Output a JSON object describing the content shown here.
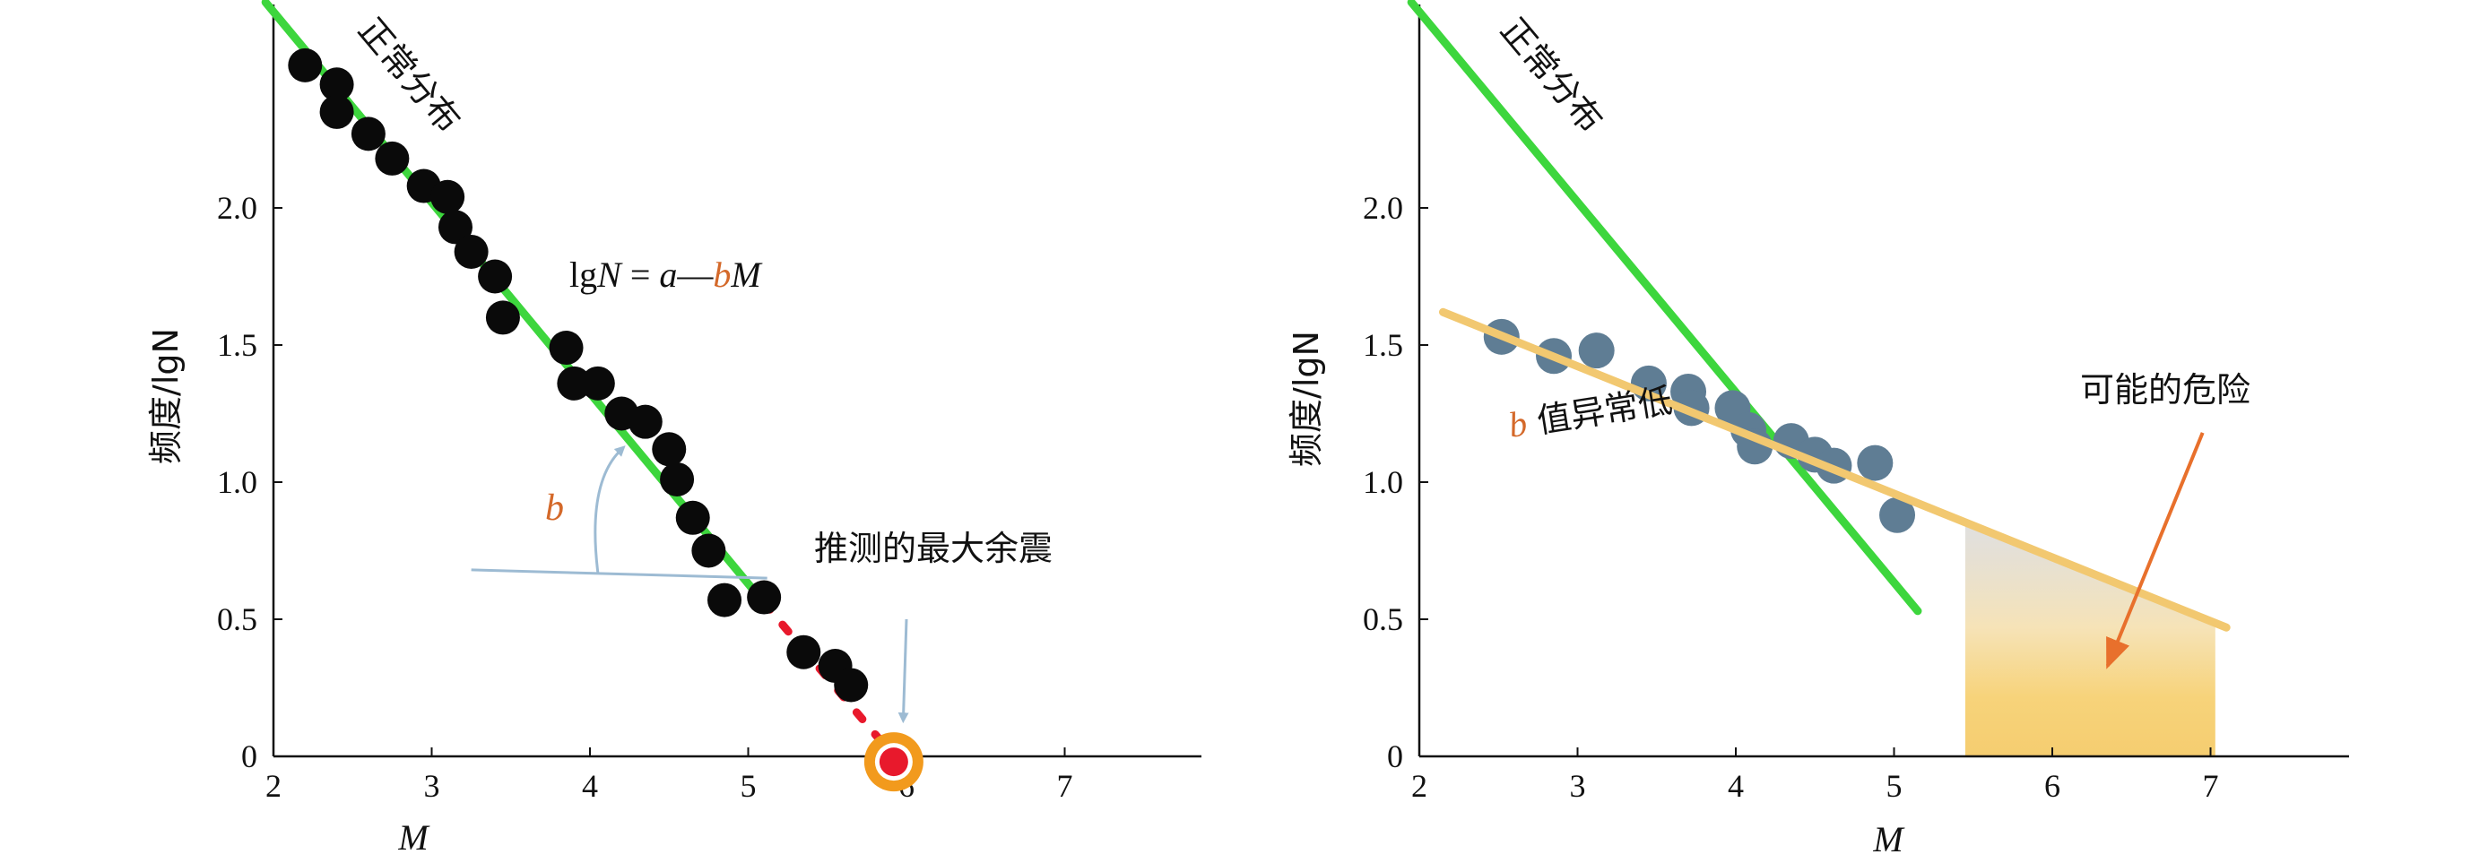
{
  "chart_data": [
    {
      "type": "scatter",
      "xlabel": "M",
      "ylabel": "频度/lgN",
      "xlim": [
        2,
        7.8
      ],
      "ylim": [
        0,
        2.7
      ],
      "xticks": [
        "2",
        "3",
        "4",
        "5",
        "6",
        "7"
      ],
      "yticks": [
        "0",
        "0.5",
        "1.0",
        "1.5",
        "2.0"
      ],
      "points": [
        [
          2.2,
          2.52
        ],
        [
          2.4,
          2.45
        ],
        [
          2.4,
          2.35
        ],
        [
          2.6,
          2.27
        ],
        [
          2.75,
          2.18
        ],
        [
          2.95,
          2.08
        ],
        [
          3.1,
          2.04
        ],
        [
          3.15,
          1.93
        ],
        [
          3.25,
          1.84
        ],
        [
          3.4,
          1.75
        ],
        [
          3.45,
          1.6
        ],
        [
          3.85,
          1.49
        ],
        [
          3.9,
          1.36
        ],
        [
          4.05,
          1.36
        ],
        [
          4.2,
          1.25
        ],
        [
          4.35,
          1.22
        ],
        [
          4.5,
          1.12
        ],
        [
          4.55,
          1.01
        ],
        [
          4.65,
          0.87
        ],
        [
          4.75,
          0.75
        ],
        [
          4.85,
          0.57
        ],
        [
          5.1,
          0.58
        ],
        [
          5.35,
          0.38
        ],
        [
          5.55,
          0.33
        ],
        [
          5.65,
          0.26
        ]
      ],
      "fit_line": {
        "label": "正常分布",
        "x": [
          1.95,
          5.1
        ],
        "y": [
          2.75,
          0.56
        ]
      },
      "extrapolation": {
        "x": [
          5.1,
          5.92
        ],
        "y": [
          0.56,
          0.0
        ]
      },
      "predicted_max": {
        "x": 5.92,
        "y": -0.02,
        "label": "推测的最大余震"
      },
      "equation": {
        "pre": "lg",
        "N": "N",
        "eq": " = ",
        "a": "a",
        "dash": "—",
        "b": "b",
        "M": "M"
      },
      "angle_label": "b",
      "colors": {
        "fit": "#3dd63d",
        "points": "#0a0a0a",
        "accent": "#d4692a",
        "annotation": "#9dbbd3",
        "target": "#f29a1d",
        "target_center": "#e8192c"
      }
    },
    {
      "type": "scatter",
      "xlabel": "M",
      "ylabel": "频度/lgN",
      "xlim": [
        2,
        7.8
      ],
      "ylim": [
        0,
        2.7
      ],
      "xticks": [
        "2",
        "3",
        "4",
        "5",
        "6",
        "7"
      ],
      "yticks": [
        "0",
        "0.5",
        "1.0",
        "1.5",
        "2.0"
      ],
      "points": [
        [
          2.52,
          1.53
        ],
        [
          2.85,
          1.46
        ],
        [
          3.12,
          1.48
        ],
        [
          3.45,
          1.36
        ],
        [
          3.7,
          1.33
        ],
        [
          3.72,
          1.27
        ],
        [
          3.98,
          1.27
        ],
        [
          4.08,
          1.19
        ],
        [
          4.12,
          1.13
        ],
        [
          4.35,
          1.15
        ],
        [
          4.5,
          1.1
        ],
        [
          4.62,
          1.06
        ],
        [
          4.88,
          1.07
        ],
        [
          5.02,
          0.88
        ]
      ],
      "normal_line": {
        "label": "正常分布",
        "x": [
          1.95,
          5.15
        ],
        "y": [
          2.75,
          0.53
        ]
      },
      "low_b_line": {
        "x": [
          2.15,
          7.1
        ],
        "y": [
          1.62,
          0.47
        ]
      },
      "low_b_label": {
        "b": "b",
        "text": "值异常低"
      },
      "danger": {
        "label": "可能的危险",
        "x_from": 5.45,
        "x_to": 7.03
      },
      "colors": {
        "normal": "#3dd63d",
        "low_b": "#f2c870",
        "points": "#5f7d94",
        "accent": "#d4692a",
        "arrow": "#e8702c"
      }
    }
  ]
}
